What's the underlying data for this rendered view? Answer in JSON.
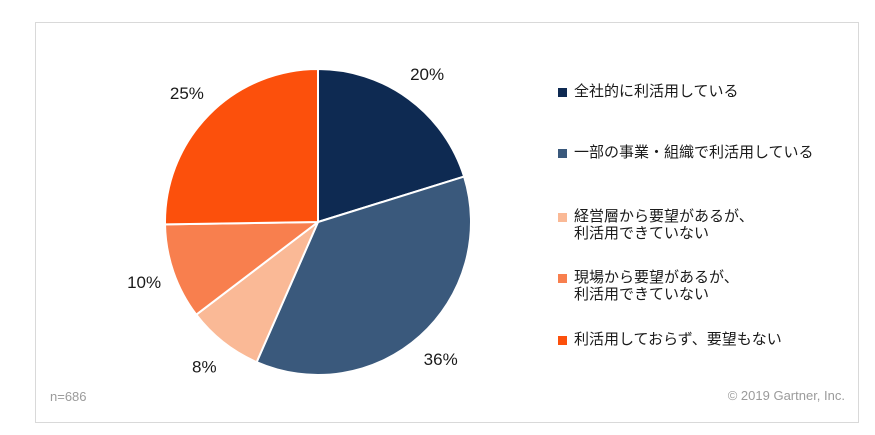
{
  "chart_data": {
    "type": "pie",
    "categories": [
      "全社的に利活用している",
      "一部の事業・組織で利活用している",
      "経営層から要望があるが、利活用できていない",
      "現場から要望があるが、利活用できていない",
      "利活用しておらず、要望もない"
    ],
    "values": [
      20,
      36,
      8,
      10,
      25
    ],
    "data_labels": [
      "20%",
      "36%",
      "8%",
      "10%",
      "25%"
    ],
    "colors": [
      "#0E2A52",
      "#3A597C",
      "#FAB996",
      "#F87F4E",
      "#FC500C"
    ],
    "start_angle_deg": 0,
    "direction": "clockwise",
    "legend_position": "right",
    "title": ""
  },
  "legend": {
    "items": [
      {
        "label": "全社的に利活用している",
        "color": "#0E2A52"
      },
      {
        "label": "一部の事業・組織で利活用している",
        "color": "#3A597C"
      },
      {
        "label": "経営層から要望があるが、\n利活用できていない",
        "color": "#FAB996"
      },
      {
        "label": "現場から要望があるが、\n利活用できていない",
        "color": "#F87F4E"
      },
      {
        "label": "利活用しておらず、要望もない",
        "color": "#FC500C"
      }
    ]
  },
  "footer": {
    "sample_size": "n=686",
    "copyright": "© 2019 Gartner, Inc."
  }
}
